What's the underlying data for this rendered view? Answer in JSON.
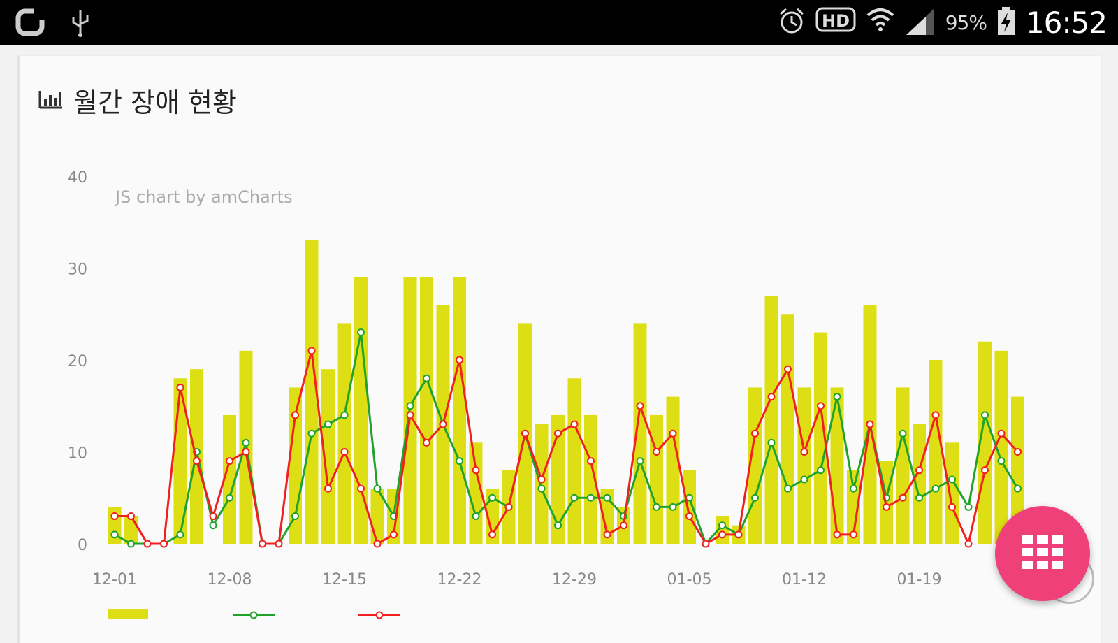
{
  "status_bar": {
    "battery_percent": "95%",
    "time": "16:52",
    "icons": [
      "carrier-logo-icon",
      "usb-icon",
      "alarm-icon",
      "hd-icon",
      "wifi-icon",
      "signal-icon",
      "battery-charging-icon"
    ]
  },
  "card": {
    "title": "월간 장애 현황",
    "title_icon": "bar-chart-icon"
  },
  "fab": {
    "icon": "grid-icon",
    "color": "#f0407a"
  },
  "chart_data": {
    "type": "bar",
    "watermark": "JS chart by amCharts",
    "ylim": [
      0,
      40
    ],
    "yticks": [
      0,
      10,
      20,
      30,
      40
    ],
    "xtick_labels": [
      "12-01",
      "12-08",
      "12-15",
      "12-22",
      "12-29",
      "01-05",
      "01-12",
      "01-19"
    ],
    "xtick_index": [
      0,
      7,
      14,
      21,
      28,
      35,
      42,
      49
    ],
    "colors": {
      "bars": "#dede14",
      "series2": "#1fa32b",
      "series3": "#f21f1f"
    },
    "series": [
      {
        "type": "bar",
        "values": [
          4,
          3,
          0,
          0,
          18,
          19,
          0,
          14,
          21,
          0,
          0,
          17,
          33,
          19,
          24,
          29,
          6,
          6,
          29,
          29,
          26,
          29,
          11,
          6,
          8,
          24,
          13,
          14,
          18,
          14,
          6,
          4,
          24,
          14,
          16,
          8,
          0,
          3,
          2,
          17,
          27,
          25,
          17,
          23,
          17,
          8,
          26,
          9,
          17,
          13,
          20,
          11,
          0,
          22,
          21,
          16
        ]
      },
      {
        "type": "line",
        "values": [
          1,
          0,
          0,
          0,
          1,
          10,
          2,
          5,
          11,
          0,
          0,
          3,
          12,
          13,
          14,
          23,
          6,
          3,
          15,
          18,
          13,
          9,
          3,
          5,
          4,
          12,
          6,
          2,
          5,
          5,
          5,
          3,
          9,
          4,
          4,
          5,
          0,
          2,
          1,
          5,
          11,
          6,
          7,
          8,
          16,
          6,
          13,
          5,
          12,
          5,
          6,
          7,
          4,
          14,
          9,
          6
        ]
      },
      {
        "type": "line",
        "values": [
          3,
          3,
          0,
          0,
          17,
          9,
          3,
          9,
          10,
          0,
          0,
          14,
          21,
          6,
          10,
          6,
          0,
          1,
          14,
          11,
          13,
          20,
          8,
          1,
          4,
          12,
          7,
          12,
          13,
          9,
          1,
          2,
          15,
          10,
          12,
          3,
          0,
          1,
          1,
          12,
          16,
          19,
          10,
          15,
          1,
          1,
          13,
          4,
          5,
          8,
          14,
          4,
          0,
          8,
          12,
          10
        ]
      }
    ],
    "legend": {
      "placement": "bottom-left"
    }
  }
}
